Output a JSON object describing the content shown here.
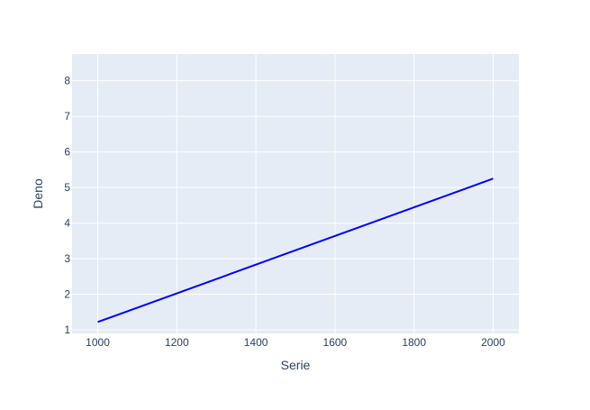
{
  "chart_data": {
    "type": "line",
    "title": "",
    "xlabel": "Serie",
    "ylabel": "Deno",
    "xlim": [
      935,
      2065
    ],
    "ylim": [
      0.9,
      8.75
    ],
    "xticks": [
      1000,
      1200,
      1400,
      1600,
      1800,
      2000
    ],
    "yticks": [
      1,
      2,
      3,
      4,
      5,
      6,
      7,
      8
    ],
    "grid": true,
    "legend": "none",
    "series": [
      {
        "x": [
          1000,
          2000
        ],
        "y": [
          1.22,
          5.25
        ]
      }
    ]
  },
  "colors": {
    "plot_background": "#E5ECF6",
    "grid": "#FFFFFF",
    "line": "#0000FF",
    "text": "#2A3F5F"
  }
}
